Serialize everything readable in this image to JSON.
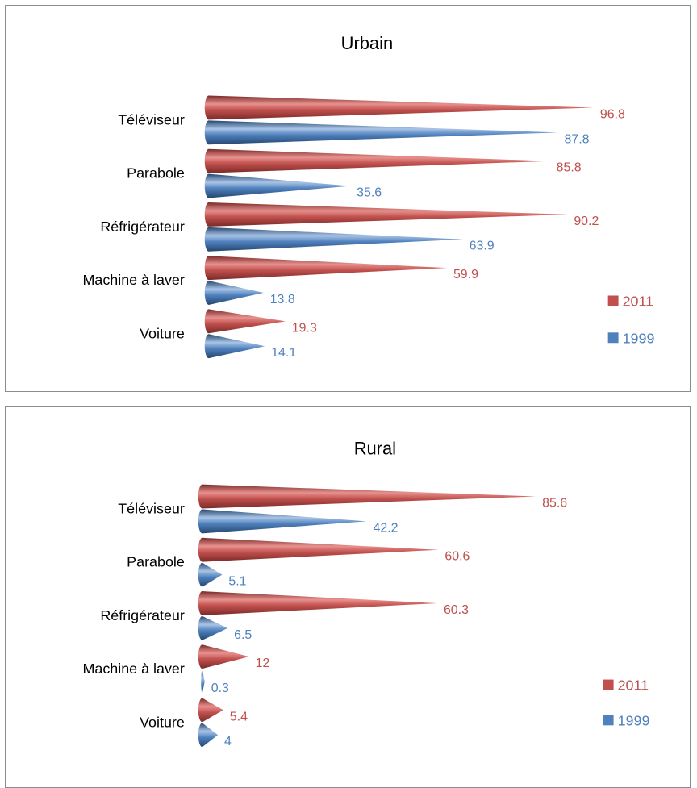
{
  "colors": {
    "2011": "#c0504d",
    "1999": "#4f81bd"
  },
  "chart_data": [
    {
      "type": "bar",
      "title": "Urbain",
      "categories": [
        "Téléviseur",
        "Parabole",
        "Réfrigérateur",
        "Machine à laver",
        "Voiture"
      ],
      "series": [
        {
          "name": "2011",
          "values": [
            96.8,
            85.8,
            90.2,
            59.9,
            19.3
          ]
        },
        {
          "name": "1999",
          "values": [
            87.8,
            35.6,
            63.9,
            13.8,
            14.1
          ]
        }
      ],
      "legend_position": "right",
      "grid": false,
      "xlim": [
        0,
        100
      ]
    },
    {
      "type": "bar",
      "title": "Rural",
      "categories": [
        "Téléviseur",
        "Parabole",
        "Réfrigérateur",
        "Machine à laver",
        "Voiture"
      ],
      "series": [
        {
          "name": "2011",
          "values": [
            85.6,
            60.6,
            60.3,
            12,
            5.4
          ]
        },
        {
          "name": "1999",
          "values": [
            42.2,
            5.1,
            6.5,
            0.3,
            4
          ]
        }
      ],
      "legend_position": "right",
      "grid": false,
      "xlim": [
        0,
        100
      ]
    }
  ]
}
